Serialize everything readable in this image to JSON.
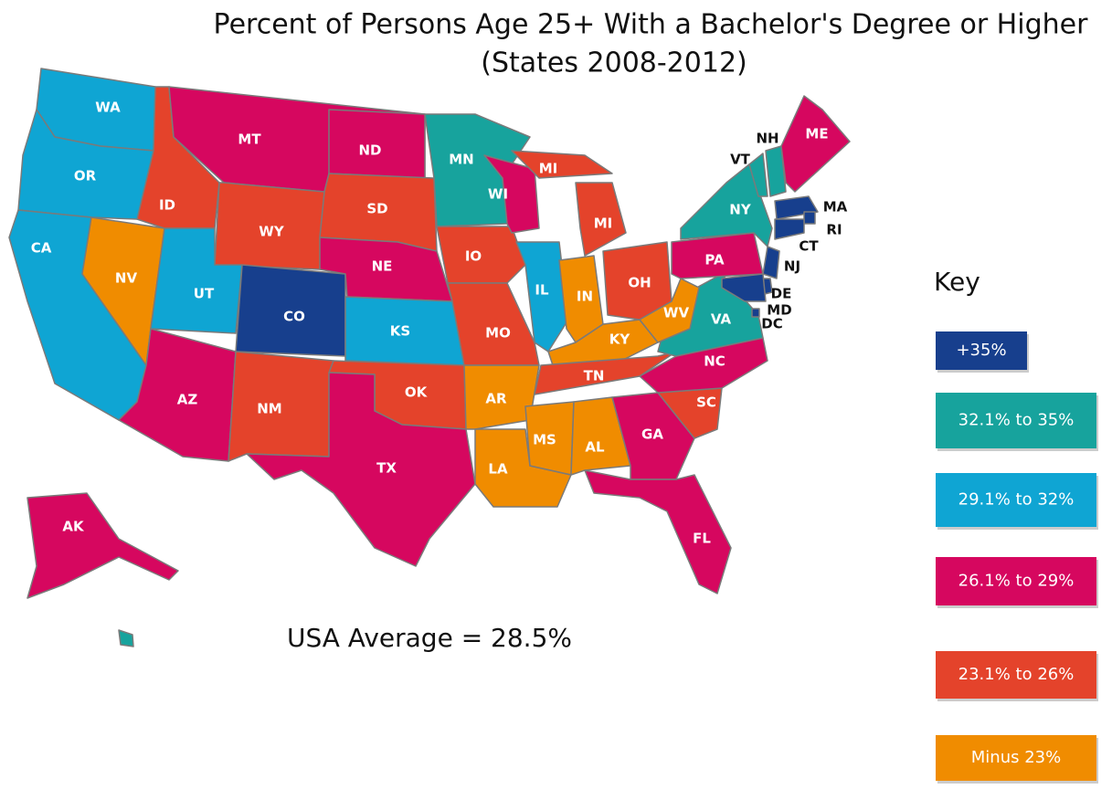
{
  "header": {
    "title": "Percent of Persons Age 25+ With a Bachelor's Degree or Higher",
    "subtitle": "(States 2008-2012)"
  },
  "average": "USA Average = 28.5%",
  "key": {
    "title": "Key",
    "items": [
      {
        "label": "+35%",
        "color": "#173f8d"
      },
      {
        "label": "32.1% to 35%",
        "color": "#17a39d"
      },
      {
        "label": "29.1% to 32%",
        "color": "#0fa5d3"
      },
      {
        "label": "26.1% to 29%",
        "color": "#d6075f"
      },
      {
        "label": "23.1% to 26%",
        "color": "#e4432b"
      },
      {
        "label": "Minus 23%",
        "color": "#f08c00"
      }
    ]
  },
  "states": [
    {
      "label": "WA",
      "class": 2
    },
    {
      "label": "OR",
      "class": 2
    },
    {
      "label": "CA",
      "class": 2
    },
    {
      "label": "NV",
      "class": 5
    },
    {
      "label": "ID",
      "class": 4
    },
    {
      "label": "MT",
      "class": 3
    },
    {
      "label": "WY",
      "class": 4
    },
    {
      "label": "UT",
      "class": 2
    },
    {
      "label": "CO",
      "class": 0
    },
    {
      "label": "AZ",
      "class": 3
    },
    {
      "label": "NM",
      "class": 4
    },
    {
      "label": "ND",
      "class": 3
    },
    {
      "label": "SD",
      "class": 4
    },
    {
      "label": "NE",
      "class": 3
    },
    {
      "label": "KS",
      "class": 2
    },
    {
      "label": "OK",
      "class": 4
    },
    {
      "label": "TX",
      "class": 3
    },
    {
      "label": "MN",
      "class": 1
    },
    {
      "label": "IO",
      "class": 4
    },
    {
      "label": "MO",
      "class": 4
    },
    {
      "label": "AR",
      "class": 5
    },
    {
      "label": "LA",
      "class": 5
    },
    {
      "label": "WI",
      "class": 3
    },
    {
      "label": "MI",
      "class": 4
    },
    {
      "label": "MI",
      "class": 4
    },
    {
      "label": "IL",
      "class": 2
    },
    {
      "label": "IN",
      "class": 5
    },
    {
      "label": "OH",
      "class": 4
    },
    {
      "label": "KY",
      "class": 5
    },
    {
      "label": "TN",
      "class": 4
    },
    {
      "label": "MS",
      "class": 5
    },
    {
      "label": "AL",
      "class": 5
    },
    {
      "label": "GA",
      "class": 3
    },
    {
      "label": "FL",
      "class": 3
    },
    {
      "label": "SC",
      "class": 4
    },
    {
      "label": "NC",
      "class": 3
    },
    {
      "label": "VA",
      "class": 1
    },
    {
      "label": "WV",
      "class": 5
    },
    {
      "label": "PA",
      "class": 3
    },
    {
      "label": "NY",
      "class": 1
    },
    {
      "label": "VT",
      "class": 1
    },
    {
      "label": "NH",
      "class": 1
    },
    {
      "label": "ME",
      "class": 3
    },
    {
      "label": "MA",
      "class": 0
    },
    {
      "label": "RI",
      "class": 0
    },
    {
      "label": "CT",
      "class": 0
    },
    {
      "label": "NJ",
      "class": 0
    },
    {
      "label": "DE",
      "class": 0
    },
    {
      "label": "MD",
      "class": 0
    },
    {
      "label": "DC",
      "class": 0
    },
    {
      "label": "AK",
      "class": 3
    },
    {
      "label": null,
      "class": 1
    }
  ]
}
